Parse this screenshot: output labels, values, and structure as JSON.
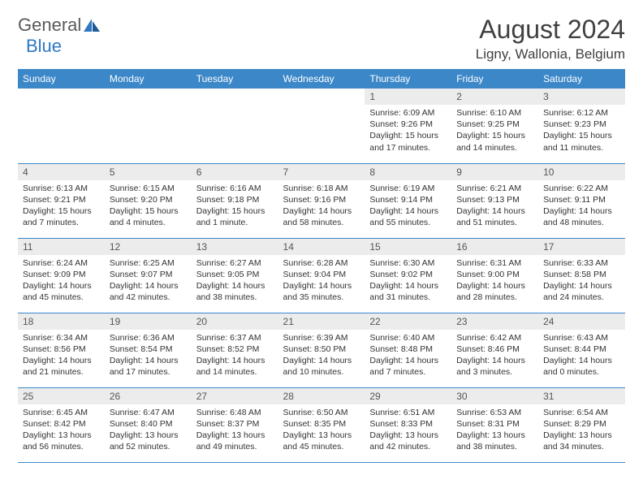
{
  "logo": {
    "text1": "General",
    "text2": "Blue"
  },
  "title": "August 2024",
  "location": "Ligny, Wallonia, Belgium",
  "colors": {
    "header_bg": "#3b87c8",
    "header_text": "#ffffff",
    "daynum_bg": "#ececec",
    "border": "#3b87c8",
    "logo_blue": "#2f78c2",
    "logo_gray": "#5a5a5a"
  },
  "weekdays": [
    "Sunday",
    "Monday",
    "Tuesday",
    "Wednesday",
    "Thursday",
    "Friday",
    "Saturday"
  ],
  "weeks": [
    [
      null,
      null,
      null,
      null,
      {
        "n": "1",
        "sr": "6:09 AM",
        "ss": "9:26 PM",
        "dl": "15 hours and 17 minutes."
      },
      {
        "n": "2",
        "sr": "6:10 AM",
        "ss": "9:25 PM",
        "dl": "15 hours and 14 minutes."
      },
      {
        "n": "3",
        "sr": "6:12 AM",
        "ss": "9:23 PM",
        "dl": "15 hours and 11 minutes."
      }
    ],
    [
      {
        "n": "4",
        "sr": "6:13 AM",
        "ss": "9:21 PM",
        "dl": "15 hours and 7 minutes."
      },
      {
        "n": "5",
        "sr": "6:15 AM",
        "ss": "9:20 PM",
        "dl": "15 hours and 4 minutes."
      },
      {
        "n": "6",
        "sr": "6:16 AM",
        "ss": "9:18 PM",
        "dl": "15 hours and 1 minute."
      },
      {
        "n": "7",
        "sr": "6:18 AM",
        "ss": "9:16 PM",
        "dl": "14 hours and 58 minutes."
      },
      {
        "n": "8",
        "sr": "6:19 AM",
        "ss": "9:14 PM",
        "dl": "14 hours and 55 minutes."
      },
      {
        "n": "9",
        "sr": "6:21 AM",
        "ss": "9:13 PM",
        "dl": "14 hours and 51 minutes."
      },
      {
        "n": "10",
        "sr": "6:22 AM",
        "ss": "9:11 PM",
        "dl": "14 hours and 48 minutes."
      }
    ],
    [
      {
        "n": "11",
        "sr": "6:24 AM",
        "ss": "9:09 PM",
        "dl": "14 hours and 45 minutes."
      },
      {
        "n": "12",
        "sr": "6:25 AM",
        "ss": "9:07 PM",
        "dl": "14 hours and 42 minutes."
      },
      {
        "n": "13",
        "sr": "6:27 AM",
        "ss": "9:05 PM",
        "dl": "14 hours and 38 minutes."
      },
      {
        "n": "14",
        "sr": "6:28 AM",
        "ss": "9:04 PM",
        "dl": "14 hours and 35 minutes."
      },
      {
        "n": "15",
        "sr": "6:30 AM",
        "ss": "9:02 PM",
        "dl": "14 hours and 31 minutes."
      },
      {
        "n": "16",
        "sr": "6:31 AM",
        "ss": "9:00 PM",
        "dl": "14 hours and 28 minutes."
      },
      {
        "n": "17",
        "sr": "6:33 AM",
        "ss": "8:58 PM",
        "dl": "14 hours and 24 minutes."
      }
    ],
    [
      {
        "n": "18",
        "sr": "6:34 AM",
        "ss": "8:56 PM",
        "dl": "14 hours and 21 minutes."
      },
      {
        "n": "19",
        "sr": "6:36 AM",
        "ss": "8:54 PM",
        "dl": "14 hours and 17 minutes."
      },
      {
        "n": "20",
        "sr": "6:37 AM",
        "ss": "8:52 PM",
        "dl": "14 hours and 14 minutes."
      },
      {
        "n": "21",
        "sr": "6:39 AM",
        "ss": "8:50 PM",
        "dl": "14 hours and 10 minutes."
      },
      {
        "n": "22",
        "sr": "6:40 AM",
        "ss": "8:48 PM",
        "dl": "14 hours and 7 minutes."
      },
      {
        "n": "23",
        "sr": "6:42 AM",
        "ss": "8:46 PM",
        "dl": "14 hours and 3 minutes."
      },
      {
        "n": "24",
        "sr": "6:43 AM",
        "ss": "8:44 PM",
        "dl": "14 hours and 0 minutes."
      }
    ],
    [
      {
        "n": "25",
        "sr": "6:45 AM",
        "ss": "8:42 PM",
        "dl": "13 hours and 56 minutes."
      },
      {
        "n": "26",
        "sr": "6:47 AM",
        "ss": "8:40 PM",
        "dl": "13 hours and 52 minutes."
      },
      {
        "n": "27",
        "sr": "6:48 AM",
        "ss": "8:37 PM",
        "dl": "13 hours and 49 minutes."
      },
      {
        "n": "28",
        "sr": "6:50 AM",
        "ss": "8:35 PM",
        "dl": "13 hours and 45 minutes."
      },
      {
        "n": "29",
        "sr": "6:51 AM",
        "ss": "8:33 PM",
        "dl": "13 hours and 42 minutes."
      },
      {
        "n": "30",
        "sr": "6:53 AM",
        "ss": "8:31 PM",
        "dl": "13 hours and 38 minutes."
      },
      {
        "n": "31",
        "sr": "6:54 AM",
        "ss": "8:29 PM",
        "dl": "13 hours and 34 minutes."
      }
    ]
  ],
  "labels": {
    "sunrise": "Sunrise:",
    "sunset": "Sunset:",
    "daylight": "Daylight:"
  }
}
